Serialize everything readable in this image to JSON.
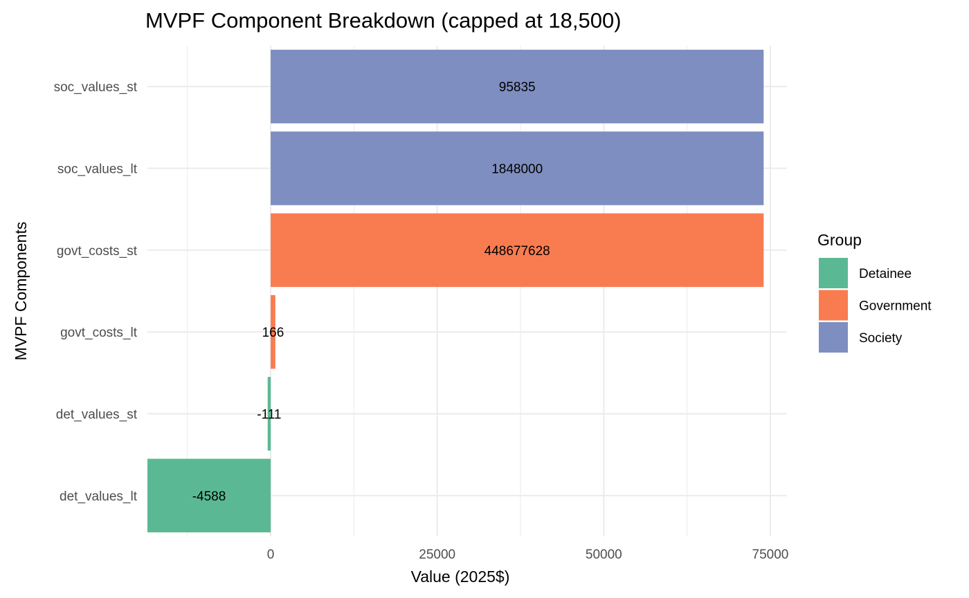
{
  "chart_data": {
    "type": "bar",
    "orientation": "horizontal",
    "title": "MVPF Component Breakdown (capped at 18,500)",
    "xlabel": "Value (2025$)",
    "ylabel": "MVPF Components",
    "xlim": [
      -18500,
      77500
    ],
    "x_ticks": [
      0,
      25000,
      50000,
      75000
    ],
    "x_tick_labels": [
      "0",
      "25000",
      "50000",
      "75000"
    ],
    "grid": true,
    "legend": {
      "title": "Group",
      "position": "right",
      "entries": [
        {
          "name": "Detainee",
          "color": "#5ab994"
        },
        {
          "name": "Government",
          "color": "#f97c51"
        },
        {
          "name": "Society",
          "color": "#7e8ec0"
        }
      ]
    },
    "categories": [
      "soc_values_st",
      "soc_values_lt",
      "govt_costs_st",
      "govt_costs_lt",
      "det_values_st",
      "det_values_lt"
    ],
    "bars": [
      {
        "category": "soc_values_st",
        "group": "Society",
        "value": 74000,
        "label": "95835"
      },
      {
        "category": "soc_values_lt",
        "group": "Society",
        "value": 74000,
        "label": "1848000"
      },
      {
        "category": "govt_costs_st",
        "group": "Government",
        "value": 74000,
        "label": "448677628"
      },
      {
        "category": "govt_costs_lt",
        "group": "Government",
        "value": 700,
        "label": "166"
      },
      {
        "category": "det_values_st",
        "group": "Detainee",
        "value": -450,
        "label": "-111"
      },
      {
        "category": "det_values_lt",
        "group": "Detainee",
        "value": -18500,
        "label": "-4588"
      }
    ]
  }
}
